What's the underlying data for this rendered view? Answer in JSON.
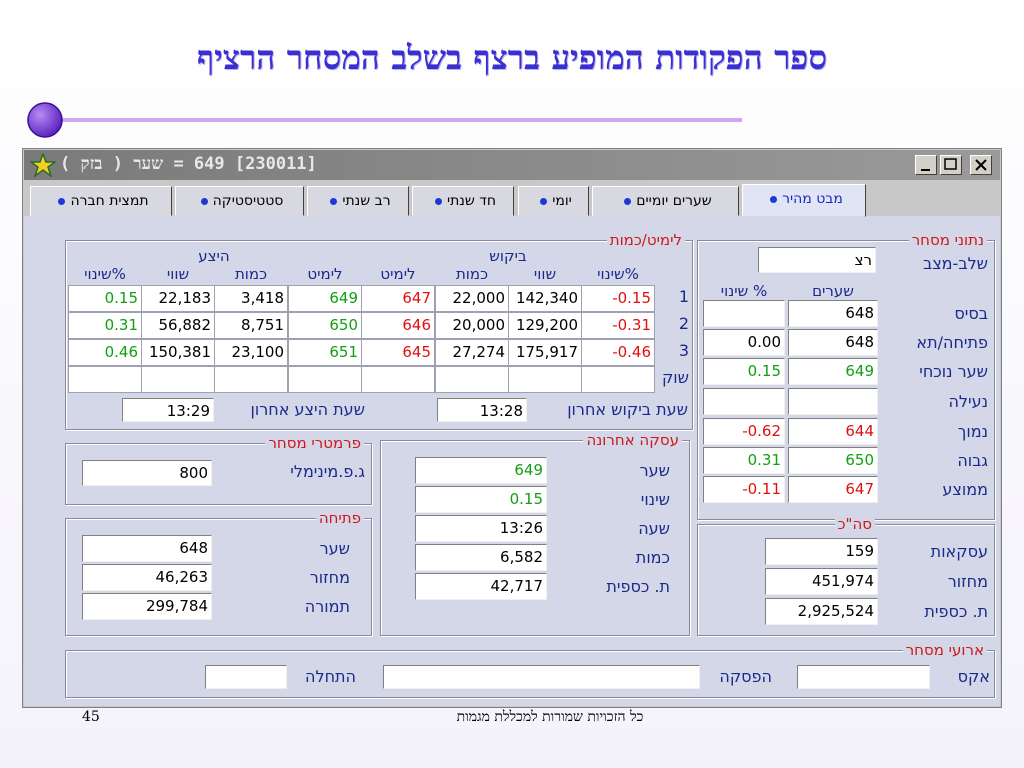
{
  "slide": {
    "title": "ספר הפקודות המופיע ברצף בשלב המסחר הרציף",
    "page_number": "45",
    "footer": "כל הזכויות שמורות למכללת מגמות"
  },
  "window": {
    "title": "[230011] 649 = שער ( בזק )",
    "tabs": [
      "מבט מהיר",
      "שערים יומיים",
      "יומי",
      "חד שנתי",
      "רב שנתי",
      "סטטיסטיקה",
      "תמצית חברה"
    ]
  },
  "order_book": {
    "title": "לימיט/כמות",
    "bid_title": "ביקוש",
    "ask_title": "היצע",
    "bid_columns": [
      "%שינוי",
      "שווי",
      "כמות",
      "לימיט"
    ],
    "ask_columns": [
      "לימיט",
      "כמות",
      "שווי",
      "%שינוי"
    ],
    "rows": [
      {
        "label": "1",
        "bid": [
          "-0.15",
          "142,340",
          "22,000",
          "647"
        ],
        "ask": [
          "649",
          "3,418",
          "22,183",
          "0.15"
        ]
      },
      {
        "label": "2",
        "bid": [
          "-0.31",
          "129,200",
          "20,000",
          "646"
        ],
        "ask": [
          "650",
          "8,751",
          "56,882",
          "0.31"
        ]
      },
      {
        "label": "3",
        "bid": [
          "-0.46",
          "175,917",
          "27,274",
          "645"
        ],
        "ask": [
          "651",
          "23,100",
          "150,381",
          "0.46"
        ]
      },
      {
        "label": "שוק"
      }
    ],
    "last_bid_label": "שעת ביקוש אחרון",
    "last_bid_time": "13:28",
    "last_ask_label": "שעת היצע אחרון",
    "last_ask_time": "13:29"
  },
  "trading_data": {
    "title": "נתוני מסחר",
    "phase_label": "שלב-מצב",
    "phase": "רצ",
    "price_header": "שערים",
    "change_header": "% שינוי",
    "rows": [
      {
        "label": "בסיס",
        "price": "648"
      },
      {
        "label": "פתיחה/תא",
        "price": "648",
        "change": "0.00"
      },
      {
        "label": "שער נוכחי",
        "price": "649",
        "change": "0.15"
      },
      {
        "label": "נעילה"
      },
      {
        "label": "נמוך",
        "price": "644",
        "change": "-0.62"
      },
      {
        "label": "גבוה",
        "price": "650",
        "change": "0.31"
      },
      {
        "label": "ממוצע",
        "price": "647",
        "change": "-0.11"
      }
    ]
  },
  "totals": {
    "title": "סה\"כ",
    "rows": [
      {
        "label": "עסקאות",
        "value": "159"
      },
      {
        "label": "מחזור",
        "value": "451,974"
      },
      {
        "label": "ת. כספית",
        "value": "2,925,524"
      }
    ]
  },
  "last_trade": {
    "title": "עסקה אחרונה",
    "rows": [
      {
        "label": "שער",
        "value": "649"
      },
      {
        "label": "שינוי",
        "value": "0.15"
      },
      {
        "label": "שעה",
        "value": "13:26"
      },
      {
        "label": "כמות",
        "value": "6,582"
      },
      {
        "label": "ת. כספית",
        "value": "42,717"
      }
    ]
  },
  "trading_params": {
    "title": "פרמטרי מסחר",
    "label": "ג.פ.מינימלי",
    "value": "800"
  },
  "opening": {
    "title": "פתיחה",
    "rows": [
      {
        "label": "שער",
        "value": "648"
      },
      {
        "label": "מחזור",
        "value": "46,263"
      },
      {
        "label": "תמורה",
        "value": "299,784"
      }
    ]
  },
  "trading_events": {
    "title": "ארועי מסחר",
    "labels": [
      "אקס",
      "הפסקה",
      "התחלה"
    ]
  }
}
